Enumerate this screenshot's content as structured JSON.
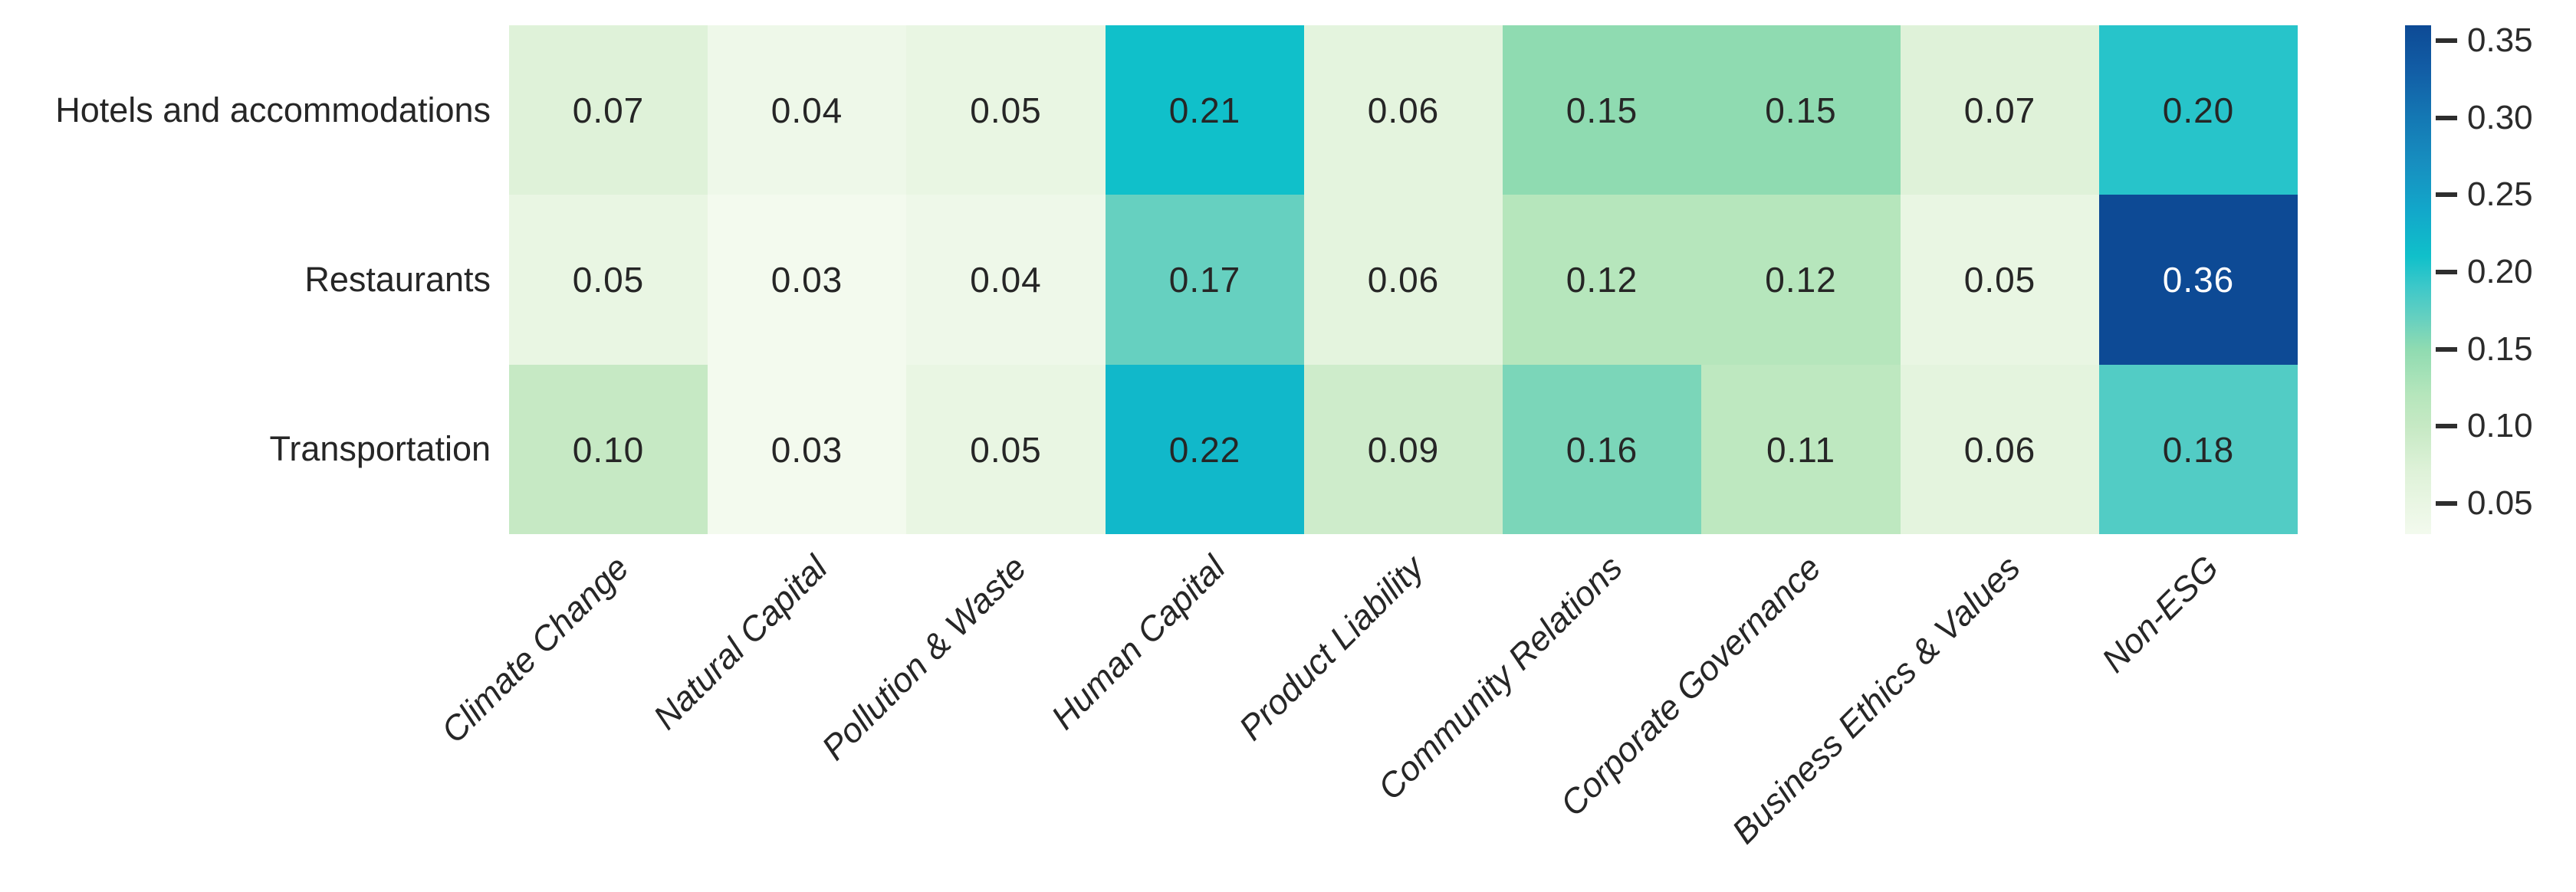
{
  "chart_data": {
    "type": "heatmap",
    "title": "",
    "rows": [
      "Hotels and accommodations",
      "Restaurants",
      "Transportation"
    ],
    "columns": [
      "Climate Change",
      "Natural Capital",
      "Pollution & Waste",
      "Human Capital",
      "Product Liability",
      "Community Relations",
      "Corporate Governance",
      "Business Ethics & Values",
      "Non-ESG"
    ],
    "values": [
      [
        0.07,
        0.04,
        0.05,
        0.21,
        0.06,
        0.15,
        0.15,
        0.07,
        0.2
      ],
      [
        0.05,
        0.03,
        0.04,
        0.17,
        0.06,
        0.12,
        0.12,
        0.05,
        0.36
      ],
      [
        0.1,
        0.03,
        0.05,
        0.22,
        0.09,
        0.16,
        0.11,
        0.06,
        0.18
      ]
    ],
    "value_decimals": 2,
    "x_label_rotation_deg": 45,
    "grid": false,
    "legend_position": "none",
    "colorbar": {
      "position": "right",
      "vmin": 0.03,
      "vmax": 0.36,
      "ticks": [
        0.05,
        0.1,
        0.15,
        0.2,
        0.25,
        0.3,
        0.35
      ],
      "tick_color": "#2e2e2e",
      "tick_label_color": "#2b2b2b"
    },
    "colormap": {
      "name": "green-to-blue",
      "stops": [
        [
          0.03,
          [
            243,
            250,
            238
          ]
        ],
        [
          0.05,
          [
            233,
            246,
            227
          ]
        ],
        [
          0.07,
          [
            223,
            242,
            217
          ]
        ],
        [
          0.1,
          [
            198,
            233,
            196
          ]
        ],
        [
          0.12,
          [
            182,
            230,
            188
          ]
        ],
        [
          0.15,
          [
            143,
            219,
            177
          ]
        ],
        [
          0.17,
          [
            102,
            208,
            192
          ]
        ],
        [
          0.19,
          [
            62,
            200,
            201
          ]
        ],
        [
          0.21,
          [
            16,
            192,
            202
          ]
        ],
        [
          0.24,
          [
            18,
            167,
            202
          ]
        ],
        [
          0.27,
          [
            23,
            143,
            192
          ]
        ],
        [
          0.3,
          [
            20,
            120,
            180
          ]
        ],
        [
          0.33,
          [
            18,
            94,
            166
          ]
        ],
        [
          0.36,
          [
            13,
            74,
            149
          ]
        ]
      ]
    },
    "text_colors": {
      "dark": "#262626",
      "light": "#ffffff",
      "light_text_threshold": 0.3
    },
    "axis_label_color": "#262626",
    "background_color": "#ffffff"
  }
}
